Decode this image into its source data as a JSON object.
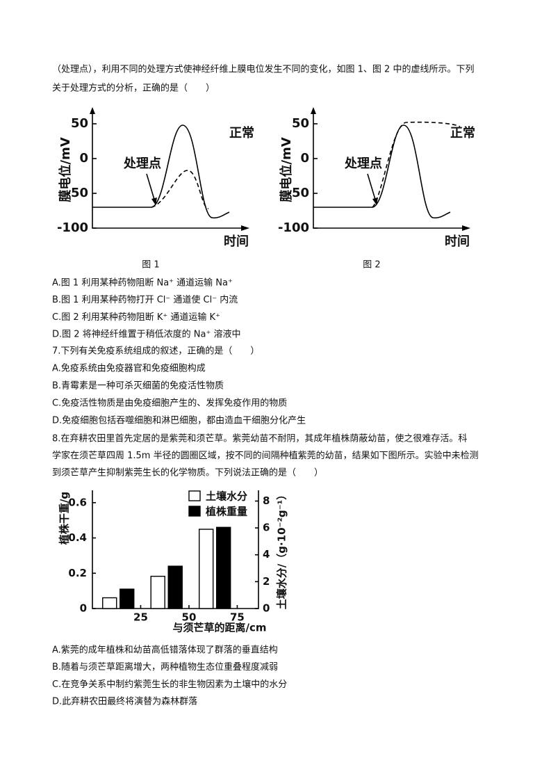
{
  "question6": {
    "stem": [
      "（处理点），利用不同的处理方式使神经纤维上膜电位发生不同的变化，如图 1、图 2 中的虚线所示。下列",
      "关于处理方式的分析，正确的是（　　）"
    ],
    "figure1": {
      "ylabel": "膜电位/mV",
      "ylim": [
        -100,
        68
      ],
      "yticks": [
        50,
        0,
        -50,
        -100
      ],
      "xlabel": "时间",
      "normal_label": "正常",
      "point_label": "处理点",
      "caption": "图 1"
    },
    "figure2": {
      "ylabel": "膜电位/mV",
      "ylim": [
        -100,
        68
      ],
      "yticks": [
        50,
        0,
        -50,
        -100
      ],
      "xlabel": "时间",
      "normal_label": "正常",
      "point_label": "处理点",
      "caption": "图 2"
    },
    "options": [
      "A.图 1 利用某种药物阻断 Na⁺ 通道运输 Na⁺",
      "B.图 1 利用某种药物打开 Cl⁻ 通道使 Cl⁻ 内流",
      "C.图 2 利用某种药物阻断 K⁺ 通道运输 K⁺",
      "D.图 2 将神经纤维置于稍低浓度的 Na⁺ 溶液中"
    ]
  },
  "question7": {
    "stem": "7.下列有关免疫系统组成的叙述，正确的是（　　）",
    "options": [
      "A.免疫系统由免疫器官和免疫细胞构成",
      "B.青霉素是一种可杀灭细菌的免疫活性物质",
      "C.免疫活性物质是由免疫细胞产生的、发挥免疫作用的物质",
      "D.免疫细胞包括吞噬细胞和淋巴细胞，都由造血干细胞分化产生"
    ]
  },
  "question8": {
    "stem": [
      "8.在弃耕农田里首先定居的是紫莞和须芒草。紫莞幼苗不耐阴，其成年植株荫蔽幼苗，使之很难存活。科",
      "学家在须芒草四周 1.5m 半径的圆圈区域，按不同的间隔种植紫莞的幼苗，结果如下图所示。实验中未检测",
      "到须芒草产生抑制紫莞生长的化学物质。下列说法正确的是（　　）"
    ],
    "chart_data": {
      "type": "bar",
      "ylabel": "植株干重/g",
      "y2label": "土壤水分/（g·10⁻²g⁻¹）",
      "xlabel": "与须芒草的距离/cm",
      "x": [
        12.5,
        37.5,
        62.5
      ],
      "xlim": [
        0,
        86
      ],
      "xticks": [
        25,
        50,
        75
      ],
      "ylim": [
        0,
        0.67
      ],
      "yticks": [
        0,
        0.2,
        0.4,
        0.6
      ],
      "y2lim": [
        0,
        8.8
      ],
      "y2ticks": [
        0,
        2,
        4,
        6,
        8
      ],
      "legend": "upper right",
      "series": [
        {
          "name": "土壤水分",
          "color": "#ffffff",
          "axis": "y2",
          "values": [
            0.8,
            2.4,
            5.9
          ]
        },
        {
          "name": "植株重量",
          "color": "#000000",
          "values": [
            0.11,
            0.24,
            0.46
          ]
        }
      ]
    },
    "options": [
      "A.紫莞的成年植株和幼苗高低错落体现了群落的垂直结构",
      "B.随着与须芒草距离增大，两种植物生态位重叠程度减弱",
      "C.在竞争关系中制约紫莞生长的非生物因素为土壤中的水分",
      "D.此弃耕农田最终将演替为森林群落"
    ]
  }
}
